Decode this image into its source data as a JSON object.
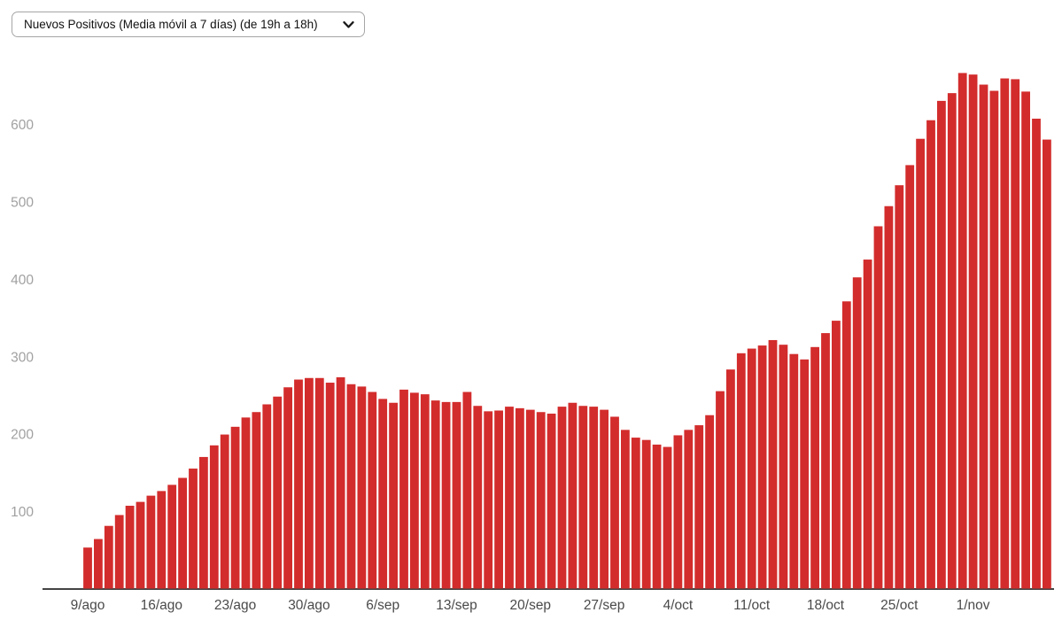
{
  "controls": {
    "metric_dropdown": {
      "selected_option": "Nuevos Positivos (Media móvil a 7 días) (de 19h a 18h)",
      "icon": "chevron-down"
    }
  },
  "chart_data": {
    "type": "bar",
    "title": "",
    "xlabel": "",
    "ylabel": "",
    "bar_color": "#d32c2c",
    "axis_colors": {
      "y_labels": "#a1a1a1",
      "x_labels": "#4a4a4a",
      "axis_line": "#444444"
    },
    "grid": false,
    "legend": "none",
    "ylim": [
      0,
      700
    ],
    "y_ticks": [
      100,
      200,
      300,
      400,
      500,
      600
    ],
    "x_tick_every_days": 7,
    "x_tick_labels": [
      "9/ago",
      "16/ago",
      "23/ago",
      "30/ago",
      "6/sep",
      "13/sep",
      "20/sep",
      "27/sep",
      "4/oct",
      "11/oct",
      "18/oct",
      "25/oct",
      "1/nov"
    ],
    "categories": [
      "9/ago",
      "10/ago",
      "11/ago",
      "12/ago",
      "13/ago",
      "14/ago",
      "15/ago",
      "16/ago",
      "17/ago",
      "18/ago",
      "19/ago",
      "20/ago",
      "21/ago",
      "22/ago",
      "23/ago",
      "24/ago",
      "25/ago",
      "26/ago",
      "27/ago",
      "28/ago",
      "29/ago",
      "30/ago",
      "31/ago",
      "1/sep",
      "2/sep",
      "3/sep",
      "4/sep",
      "5/sep",
      "6/sep",
      "7/sep",
      "8/sep",
      "9/sep",
      "10/sep",
      "11/sep",
      "12/sep",
      "13/sep",
      "14/sep",
      "15/sep",
      "16/sep",
      "17/sep",
      "18/sep",
      "19/sep",
      "20/sep",
      "21/sep",
      "22/sep",
      "23/sep",
      "24/sep",
      "25/sep",
      "26/sep",
      "27/sep",
      "28/sep",
      "29/sep",
      "30/sep",
      "1/oct",
      "2/oct",
      "3/oct",
      "4/oct",
      "5/oct",
      "6/oct",
      "7/oct",
      "8/oct",
      "9/oct",
      "10/oct",
      "11/oct",
      "12/oct",
      "13/oct",
      "14/oct",
      "15/oct",
      "16/oct",
      "17/oct",
      "18/oct",
      "19/oct",
      "20/oct",
      "21/oct",
      "22/oct",
      "23/oct",
      "24/oct",
      "25/oct",
      "26/oct",
      "27/oct",
      "28/oct",
      "29/oct",
      "30/oct",
      "31/oct",
      "1/nov",
      "2/nov",
      "3/nov",
      "4/nov",
      "5/nov",
      "6/nov",
      "7/nov",
      "8/nov"
    ],
    "values": [
      53,
      64,
      81,
      95,
      107,
      112,
      120,
      126,
      134,
      143,
      155,
      170,
      185,
      199,
      209,
      221,
      228,
      238,
      248,
      260,
      270,
      272,
      272,
      266,
      273,
      264,
      261,
      254,
      245,
      240,
      257,
      253,
      251,
      243,
      241,
      241,
      254,
      236,
      229,
      230,
      235,
      233,
      231,
      228,
      226,
      235,
      240,
      236,
      235,
      231,
      222,
      205,
      195,
      192,
      186,
      183,
      198,
      205,
      211,
      224,
      255,
      283,
      304,
      310,
      314,
      321,
      315,
      303,
      296,
      312,
      330,
      346,
      371,
      402,
      425,
      468,
      494,
      521,
      547,
      581,
      605,
      630,
      640,
      666,
      664,
      651,
      643,
      659,
      658,
      642,
      607,
      580
    ]
  }
}
